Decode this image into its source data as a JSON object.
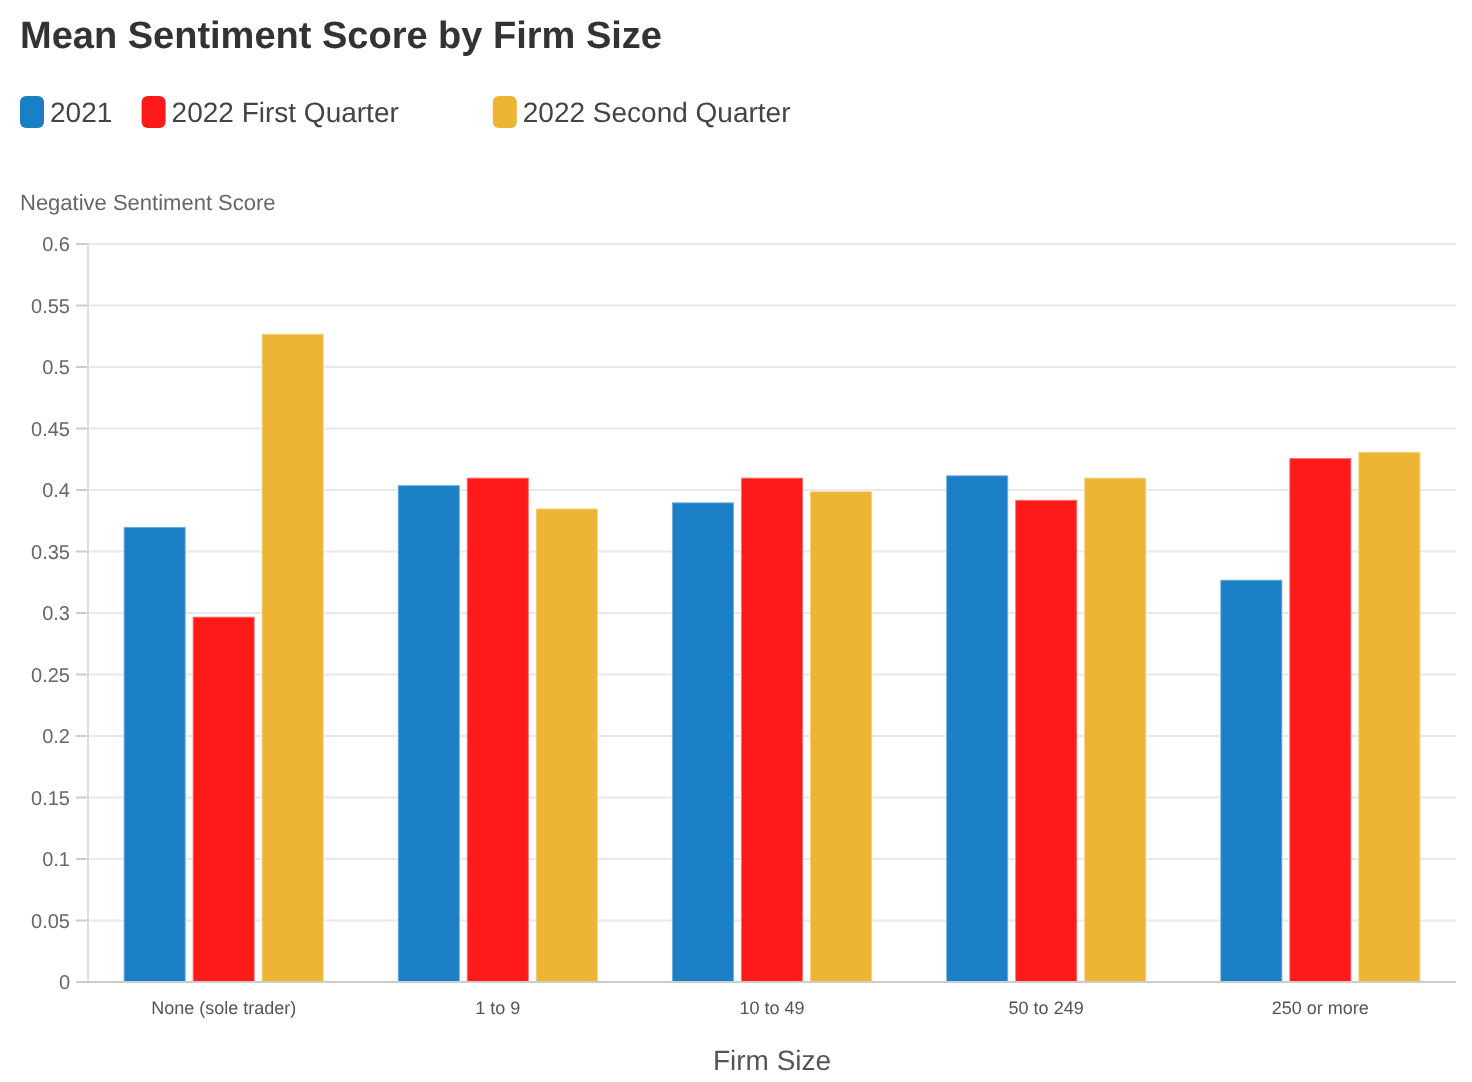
{
  "chart_data": {
    "type": "bar",
    "title": "Mean Sentiment Score by Firm Size",
    "xlabel": "Firm Size",
    "ylabel": "Negative Sentiment Score",
    "categories": [
      "None (sole trader)",
      "1 to 9",
      "10 to 49",
      "50 to 249",
      "250 or more"
    ],
    "series": [
      {
        "name": "2021",
        "color": "#1a7fc4",
        "values": [
          0.37,
          0.404,
          0.39,
          0.412,
          0.327
        ]
      },
      {
        "name": "2022 First Quarter",
        "color": "#ff1a1a",
        "values": [
          0.297,
          0.41,
          0.41,
          0.392,
          0.426
        ]
      },
      {
        "name": "2022 Second Quarter",
        "color": "#edb533",
        "values": [
          0.527,
          0.385,
          0.399,
          0.41,
          0.431
        ]
      }
    ],
    "ylim": [
      0,
      0.6
    ],
    "yticks": [
      0,
      0.05,
      0.1,
      0.15,
      0.2,
      0.25,
      0.3,
      0.35,
      0.4,
      0.45,
      0.5,
      0.55,
      0.6
    ],
    "grid": "y",
    "legend": "top left"
  }
}
